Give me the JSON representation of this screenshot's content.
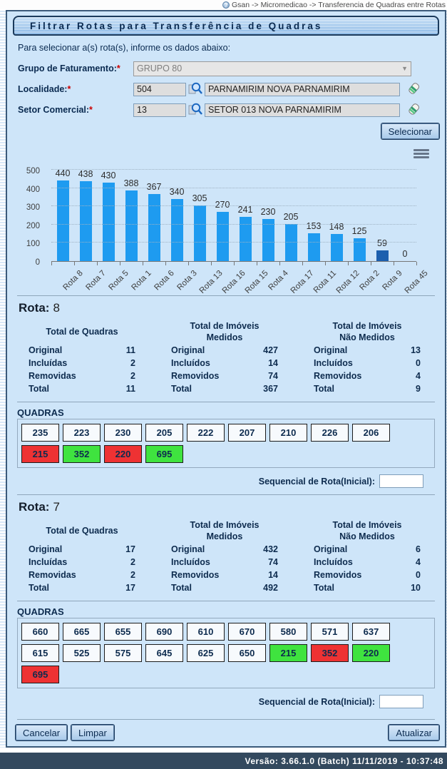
{
  "breadcrumb": {
    "text": "Gsan -> Micromedicao -> Transferencia de Quadras entre Rotas"
  },
  "title_bar": {
    "title": "Filtrar Rotas para Transferência de Quadras"
  },
  "form": {
    "instruction": "Para selecionar a(s) rota(s), informe os dados abaixo:",
    "required_mark": "*",
    "grupo": {
      "label": "Grupo de Faturamento:",
      "selected": "GRUPO 80"
    },
    "localidade": {
      "label": "Localidade:",
      "code": "504",
      "name": "PARNAMIRIM NOVA PARNAMIRIM"
    },
    "setor": {
      "label": "Setor Comercial:",
      "code": "13",
      "name": "SETOR 013 NOVA PARNAMIRIM"
    },
    "selecionar_button": "Selecionar"
  },
  "chart_data": {
    "type": "bar",
    "categories": [
      "Rota 8",
      "Rota 7",
      "Rota 5",
      "Rota 1",
      "Rota 6",
      "Rota 3",
      "Rota 13",
      "Rota 16",
      "Rota 15",
      "Rota 4",
      "Rota 17",
      "Rota 11",
      "Rota 12",
      "Rota 2",
      "Rota 9",
      "Rota 45"
    ],
    "values": [
      440,
      438,
      430,
      388,
      367,
      340,
      305,
      270,
      241,
      230,
      205,
      153,
      148,
      125,
      59,
      0
    ],
    "title": "",
    "xlabel": "",
    "ylabel": "",
    "ylim": [
      0,
      500
    ],
    "yticks": [
      0,
      100,
      200,
      300,
      400,
      500
    ],
    "grid": true,
    "legend": "none",
    "bar_color": "#1e9bf0",
    "highlight": {
      "index": 14,
      "color": "#1c5fae"
    }
  },
  "colors": {
    "quadra_default": "#f7fafd",
    "quadra_red": "#ee3233",
    "quadra_green": "#3fe33f",
    "accent_blue": "#1e9bf0",
    "footer_bg": "#33495e"
  },
  "rotas": [
    {
      "heading_label": "Rota:",
      "heading_number": "8",
      "stat_groups": [
        {
          "header_lines": [
            "Total de Quadras"
          ],
          "rows": [
            [
              "Original",
              "11"
            ],
            [
              "Incluídas",
              "2"
            ],
            [
              "Removidas",
              "2"
            ],
            [
              "Total",
              "11"
            ]
          ]
        },
        {
          "header_lines": [
            "Total de Imóveis",
            "Medidos"
          ],
          "rows": [
            [
              "Original",
              "427"
            ],
            [
              "Incluídos",
              "14"
            ],
            [
              "Removidos",
              "74"
            ],
            [
              "Total",
              "367"
            ]
          ]
        },
        {
          "header_lines": [
            "Total de Imóveis",
            "Não Medidos"
          ],
          "rows": [
            [
              "Original",
              "13"
            ],
            [
              "Incluídos",
              "0"
            ],
            [
              "Removidos",
              "4"
            ],
            [
              "Total",
              "9"
            ]
          ]
        }
      ],
      "quadras_label": "QUADRAS",
      "quadras": [
        {
          "label": "235",
          "state": "default"
        },
        {
          "label": "223",
          "state": "default"
        },
        {
          "label": "230",
          "state": "default"
        },
        {
          "label": "205",
          "state": "default"
        },
        {
          "label": "222",
          "state": "default"
        },
        {
          "label": "207",
          "state": "default"
        },
        {
          "label": "210",
          "state": "default"
        },
        {
          "label": "226",
          "state": "default"
        },
        {
          "label": "206",
          "state": "default"
        },
        {
          "label": "215",
          "state": "red"
        },
        {
          "label": "352",
          "state": "green"
        },
        {
          "label": "220",
          "state": "red"
        },
        {
          "label": "695",
          "state": "green"
        }
      ],
      "sequencial_label": "Sequencial de Rota(Inicial):",
      "sequencial_value": ""
    },
    {
      "heading_label": "Rota:",
      "heading_number": "7",
      "stat_groups": [
        {
          "header_lines": [
            "Total de Quadras"
          ],
          "rows": [
            [
              "Original",
              "17"
            ],
            [
              "Incluídas",
              "2"
            ],
            [
              "Removidas",
              "2"
            ],
            [
              "Total",
              "17"
            ]
          ]
        },
        {
          "header_lines": [
            "Total de Imóveis",
            "Medidos"
          ],
          "rows": [
            [
              "Original",
              "432"
            ],
            [
              "Incluídos",
              "74"
            ],
            [
              "Removidos",
              "14"
            ],
            [
              "Total",
              "492"
            ]
          ]
        },
        {
          "header_lines": [
            "Total de Imóveis",
            "Não Medidos"
          ],
          "rows": [
            [
              "Original",
              "6"
            ],
            [
              "Incluídos",
              "4"
            ],
            [
              "Removidos",
              "0"
            ],
            [
              "Total",
              "10"
            ]
          ]
        }
      ],
      "quadras_label": "QUADRAS",
      "quadras": [
        {
          "label": "660",
          "state": "default"
        },
        {
          "label": "665",
          "state": "default"
        },
        {
          "label": "655",
          "state": "default"
        },
        {
          "label": "690",
          "state": "default"
        },
        {
          "label": "610",
          "state": "default"
        },
        {
          "label": "670",
          "state": "default"
        },
        {
          "label": "580",
          "state": "default"
        },
        {
          "label": "571",
          "state": "default"
        },
        {
          "label": "637",
          "state": "default"
        },
        {
          "label": "615",
          "state": "default"
        },
        {
          "label": "525",
          "state": "default"
        },
        {
          "label": "575",
          "state": "default"
        },
        {
          "label": "645",
          "state": "default"
        },
        {
          "label": "625",
          "state": "default"
        },
        {
          "label": "650",
          "state": "default"
        },
        {
          "label": "215",
          "state": "green"
        },
        {
          "label": "352",
          "state": "red"
        },
        {
          "label": "220",
          "state": "green"
        },
        {
          "label": "695",
          "state": "red"
        }
      ],
      "sequencial_label": "Sequencial de Rota(Inicial):",
      "sequencial_value": ""
    }
  ],
  "actions": {
    "cancelar": "Cancelar",
    "limpar": "Limpar",
    "atualizar": "Atualizar"
  },
  "statusbar": {
    "text": "Versão: 3.66.1.0 (Batch) 11/11/2019 - 10:37:48"
  }
}
